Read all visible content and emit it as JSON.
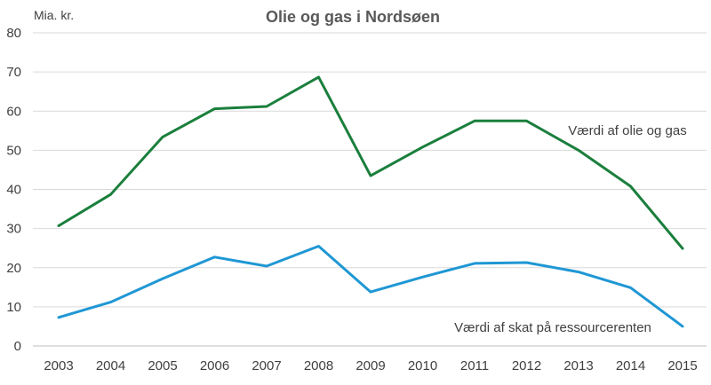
{
  "chart_data": {
    "type": "line",
    "title": "Olie og gas i Nordsøen",
    "ylabel": "Mia. kr.",
    "xlabel": "",
    "ylim": [
      0,
      80
    ],
    "yticks": [
      0,
      10,
      20,
      30,
      40,
      50,
      60,
      70,
      80
    ],
    "grid": true,
    "x": [
      "2003",
      "2004",
      "2005",
      "2006",
      "2007",
      "2008",
      "2009",
      "2010",
      "2011",
      "2012",
      "2013",
      "2014",
      "2015"
    ],
    "series": [
      {
        "name": "Værdi af olie og gas",
        "color": "#1a7f3c",
        "values": [
          30.7,
          38.7,
          53.4,
          60.6,
          61.2,
          68.7,
          43.5,
          50.8,
          57.5,
          57.5,
          50.0,
          40.8,
          24.9
        ]
      },
      {
        "name": "Værdi af skat på ressourcerenten",
        "color": "#1f97d4",
        "values": [
          7.3,
          11.2,
          17.2,
          22.7,
          20.4,
          25.5,
          13.8,
          17.6,
          21.1,
          21.3,
          18.9,
          14.9,
          5.0
        ]
      }
    ]
  }
}
